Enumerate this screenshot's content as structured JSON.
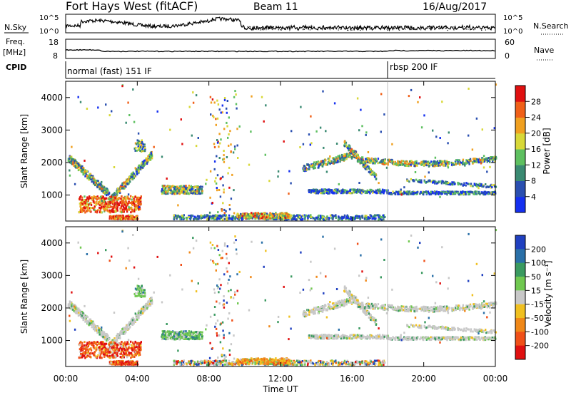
{
  "header": {
    "title": "Fort Hays West (fitACF)",
    "beam": "Beam 11",
    "date": "16/Aug/2017"
  },
  "top_panels": {
    "nsky_label": "N.Sky",
    "nsearch_label": "N.Search",
    "nsky_ticks": [
      "10^5",
      "10^0"
    ],
    "nsearch_ticks": [
      "10^5",
      "10^0"
    ],
    "freq_label": "Freq.",
    "freq_unit": "[MHz]",
    "freq_ticks": [
      "18",
      "8"
    ],
    "nave_label": "Nave",
    "nave_ticks": [
      "60",
      "0"
    ],
    "cpid_label": "CPID",
    "cpid_segments": [
      {
        "text": "normal (fast) 151 IF",
        "start_hour": 0
      },
      {
        "text": "rbsp 200 IF",
        "start_hour": 18
      }
    ]
  },
  "chart_data": [
    {
      "type": "heatmap",
      "name": "power",
      "x_label": "Time UT",
      "y_label": "Slant Range [km]",
      "x_range_hours": [
        0,
        24
      ],
      "y_range_km": [
        200,
        4500
      ],
      "y_ticks": [
        "1000",
        "2000",
        "3000",
        "4000"
      ],
      "colorbar_label": "Power [dB]",
      "colorbar_ticks": [
        "4",
        "8",
        "12",
        "16",
        "20",
        "24",
        "28"
      ],
      "colorbar_colors": [
        "#1530f0",
        "#2a4fb0",
        "#3a8a72",
        "#5ec060",
        "#d8d838",
        "#f0a020",
        "#f06018",
        "#e01010"
      ]
    },
    {
      "type": "heatmap",
      "name": "velocity",
      "x_label": "Time UT",
      "y_label": "Slant Range [km]",
      "x_range_hours": [
        0,
        24
      ],
      "y_range_km": [
        200,
        4500
      ],
      "y_ticks": [
        "1000",
        "2000",
        "3000",
        "4000"
      ],
      "colorbar_label": "Velocity [m s⁻¹]",
      "colorbar_ticks": [
        "200",
        "100",
        "50",
        "15",
        "-15",
        "-50",
        "-100",
        "-200"
      ],
      "colorbar_colors": [
        "#2040c0",
        "#2a70a8",
        "#3a9a60",
        "#70c850",
        "#c8c8c8",
        "#f0c020",
        "#f08818",
        "#f05018",
        "#e01010"
      ]
    }
  ],
  "x_axis": {
    "ticks": [
      "00:00",
      "04:00",
      "08:00",
      "12:00",
      "16:00",
      "20:00",
      "00:00"
    ],
    "label": "Time UT"
  }
}
